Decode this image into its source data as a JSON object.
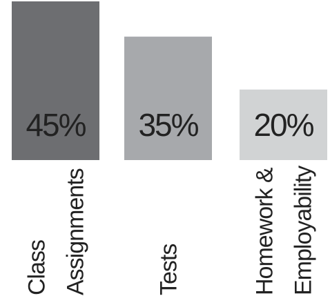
{
  "chart_data": {
    "type": "bar",
    "categories": [
      [
        "Class",
        "Assignments"
      ],
      [
        "Tests"
      ],
      [
        "Homework &",
        "Employability"
      ]
    ],
    "values": [
      45,
      35,
      20
    ],
    "value_labels": [
      "45%",
      "35%",
      "20%"
    ],
    "colors": [
      "#6d6e71",
      "#a7a9ac",
      "#d1d3d4"
    ],
    "ylim": [
      0,
      45
    ],
    "title": "",
    "xlabel": "",
    "ylabel": "",
    "grid": false,
    "legend": "none"
  }
}
